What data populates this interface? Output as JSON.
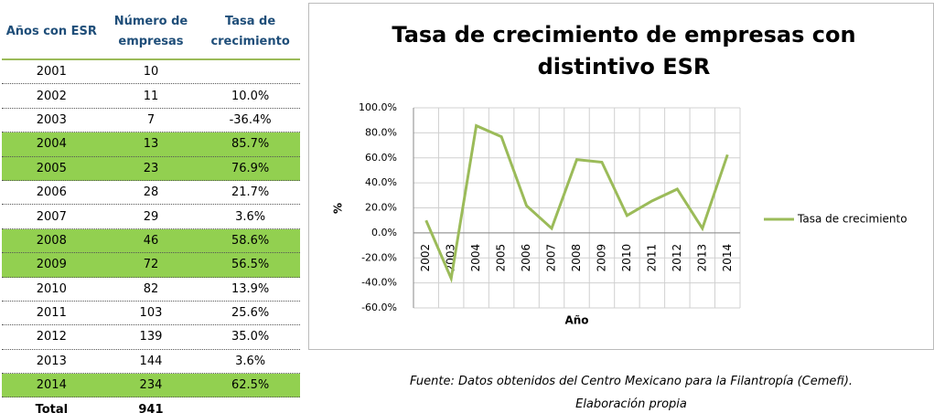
{
  "table": {
    "header": [
      "Años con ESR",
      "Número de empresas",
      "Tasa de crecimiento"
    ],
    "header_color": "#1f4e79",
    "highlight_color": "#92d050",
    "rows": [
      {
        "cells": [
          "2001",
          "10"
        ]
      },
      {
        "cells": [
          "2002",
          "11",
          "10.0%"
        ]
      },
      {
        "cells": [
          "2003",
          "7",
          "-36.4%"
        ]
      },
      {
        "cells": [
          "2004",
          "13",
          "85.7%"
        ],
        "highlighted": true
      },
      {
        "cells": [
          "2005",
          "23",
          "76.9%"
        ],
        "highlighted": true
      },
      {
        "cells": [
          "2006",
          "28",
          "21.7%"
        ]
      },
      {
        "cells": [
          "2007",
          "29",
          "3.6%"
        ]
      },
      {
        "cells": [
          "2008",
          "46",
          "58.6%"
        ],
        "highlighted": true
      },
      {
        "cells": [
          "2009",
          "72",
          "56.5%"
        ],
        "highlighted": true
      },
      {
        "cells": [
          "2010",
          "82",
          "13.9%"
        ]
      },
      {
        "cells": [
          "2011",
          "103",
          "25.6%"
        ]
      },
      {
        "cells": [
          "2012",
          "139",
          "35.0%"
        ]
      },
      {
        "cells": [
          "2013",
          "144",
          "3.6%"
        ]
      },
      {
        "cells": [
          "2014",
          "234",
          "62.5%"
        ],
        "highlighted": true
      }
    ],
    "total": [
      "Total",
      "941"
    ]
  },
  "chart_data": {
    "type": "line",
    "title": "Tasa de crecimiento de empresas con distintivo ESR",
    "x_label": "Año",
    "y_label": "%",
    "categories": [
      "2002",
      "2003",
      "2004",
      "2005",
      "2006",
      "2007",
      "2008",
      "2009",
      "2010",
      "2011",
      "2012",
      "2013",
      "2014"
    ],
    "series": [
      {
        "name": "Tasa de crecimiento",
        "color": "#9bbb59",
        "values": [
          10.0,
          -36.4,
          85.7,
          76.9,
          21.7,
          3.6,
          58.6,
          56.5,
          13.9,
          25.6,
          35.0,
          3.6,
          62.5
        ]
      }
    ],
    "ylim": [
      -60,
      100
    ],
    "yticks": [
      {
        "value": -60,
        "label": "-60.0%"
      },
      {
        "value": -40,
        "label": "-40.0%"
      },
      {
        "value": -20,
        "label": "-20.0%"
      },
      {
        "value": 0,
        "label": "0.0%"
      },
      {
        "value": 20,
        "label": "20.0%"
      },
      {
        "value": 40,
        "label": "40.0%"
      },
      {
        "value": 60,
        "label": "60.0%"
      },
      {
        "value": 80,
        "label": "80.0%"
      },
      {
        "value": 100,
        "label": "100.0%"
      }
    ],
    "grid": true,
    "legend": "right"
  },
  "source": "Fuente: Datos obtenidos del Centro Mexicano para la Filantropía (Cemefi). Elaboración propia"
}
